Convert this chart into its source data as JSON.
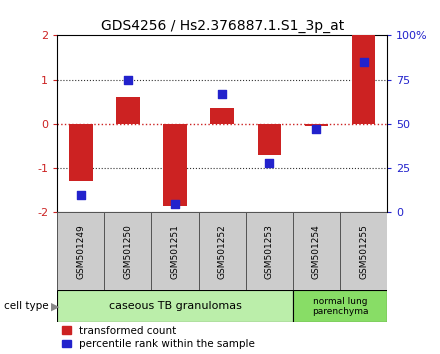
{
  "title": "GDS4256 / Hs2.376887.1.S1_3p_at",
  "samples": [
    "GSM501249",
    "GSM501250",
    "GSM501251",
    "GSM501252",
    "GSM501253",
    "GSM501254",
    "GSM501255"
  ],
  "transformed_counts": [
    -1.3,
    0.6,
    -1.85,
    0.35,
    -0.7,
    -0.05,
    2.0
  ],
  "percentile_ranks": [
    10,
    75,
    5,
    67,
    28,
    47,
    85
  ],
  "ylim_left": [
    -2,
    2
  ],
  "ylim_right": [
    0,
    100
  ],
  "yticks_left": [
    -2,
    -1,
    0,
    1,
    2
  ],
  "yticks_right": [
    0,
    25,
    50,
    75,
    100
  ],
  "ytick_labels_right": [
    "0",
    "25",
    "50",
    "75",
    "100%"
  ],
  "bar_color": "#CC2222",
  "dot_color": "#2222CC",
  "zero_line_color": "#CC2222",
  "dotted_line_color": "#333333",
  "groups": [
    {
      "label": "caseous TB granulomas",
      "n_samples": 5,
      "color": "#bbeeaa"
    },
    {
      "label": "normal lung\nparenchyma",
      "n_samples": 2,
      "color": "#88dd66"
    }
  ],
  "cell_type_label": "cell type",
  "legend_items": [
    {
      "label": "transformed count",
      "color": "#CC2222"
    },
    {
      "label": "percentile rank within the sample",
      "color": "#2222CC"
    }
  ],
  "bg_color": "#ffffff",
  "plot_bg": "#ffffff",
  "bar_width": 0.5,
  "dot_size": 40,
  "sample_box_color": "#cccccc",
  "title_fontsize": 10,
  "tick_fontsize": 8,
  "label_fontsize": 7.5
}
